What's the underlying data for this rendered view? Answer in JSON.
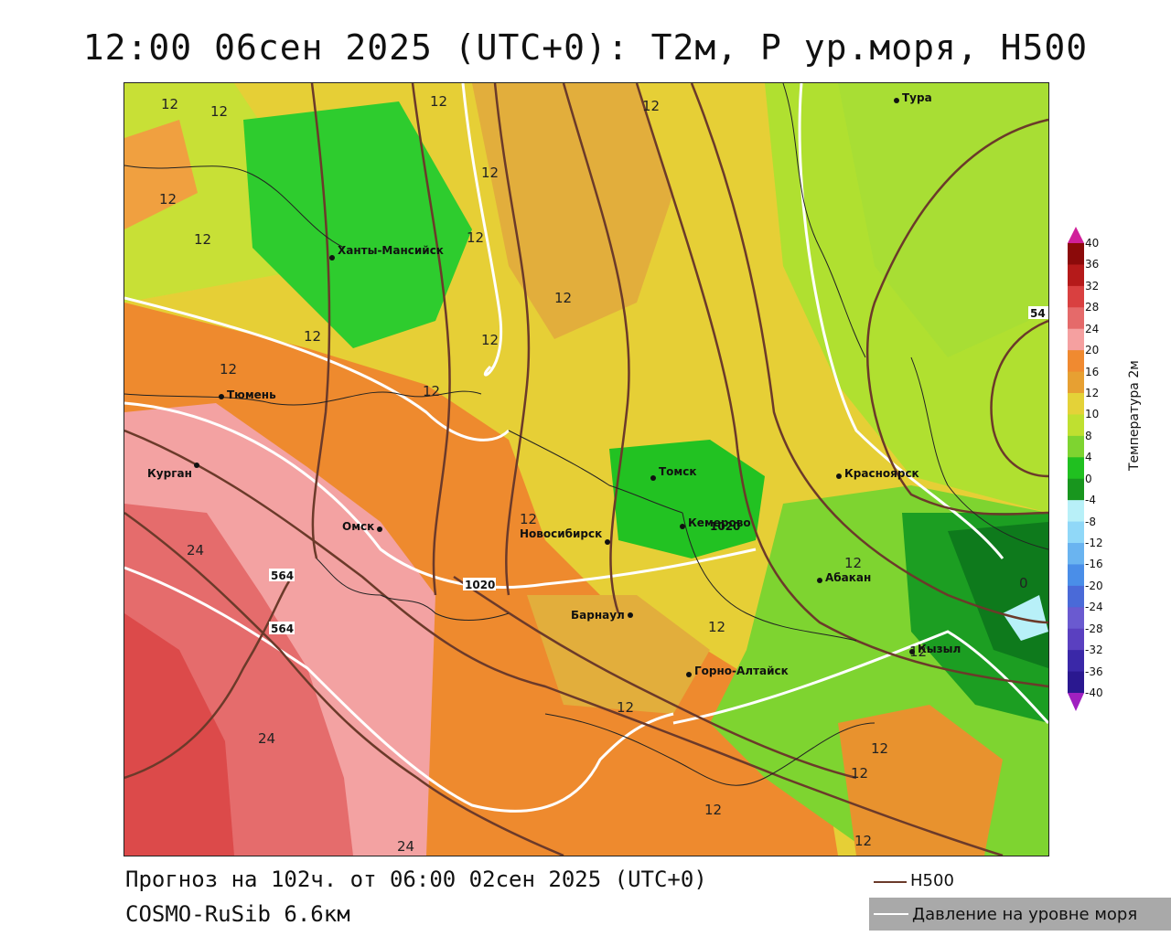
{
  "title": "12:00 06сен 2025 (UTC+0): Т2м, Р ур.моря, Н500",
  "footer": {
    "forecast": "Прогноз на 102ч. от 06:00 02сен 2025 (UTC+0)",
    "model": "COSMO-RuSib 6.6км"
  },
  "legend": {
    "h500": "Н500",
    "pressure": "Давление на уровне моря"
  },
  "colorbar": {
    "title": "Температура 2м",
    "ticks": [
      "40",
      "36",
      "32",
      "28",
      "24",
      "20",
      "16",
      "12",
      "10",
      "8",
      "4",
      "0",
      "-4",
      "-8",
      "-12",
      "-16",
      "-20",
      "-24",
      "-28",
      "-32",
      "-36",
      "-40"
    ],
    "colors": [
      "#8b0a0a",
      "#b51a1a",
      "#d94040",
      "#e56a6a",
      "#f5a0a0",
      "#f08a30",
      "#e7a032",
      "#e4d238",
      "#bfe030",
      "#7ed430",
      "#20c020",
      "#18961e",
      "#b8f0f8",
      "#90d8f8",
      "#6ab4f0",
      "#4a8ee8",
      "#4a6ad8",
      "#6a5ad0",
      "#5a40c0",
      "#3a28a8",
      "#2a1890"
    ]
  },
  "cities": [
    {
      "name": "Тура"
    },
    {
      "name": "Ханты-Мансийск"
    },
    {
      "name": "Тюмень"
    },
    {
      "name": "Курган"
    },
    {
      "name": "Омск"
    },
    {
      "name": "Новосибирск"
    },
    {
      "name": "Томск"
    },
    {
      "name": "Кемерово"
    },
    {
      "name": "Красноярск"
    },
    {
      "name": "Абакан"
    },
    {
      "name": "Барнаул"
    },
    {
      "name": "Горно-Алтайск"
    },
    {
      "name": "Кызыл"
    }
  ],
  "isolines": {
    "t12": "12",
    "t24": "24",
    "t0": "0",
    "p1020": "1020",
    "h564": "564",
    "h54": "54"
  }
}
